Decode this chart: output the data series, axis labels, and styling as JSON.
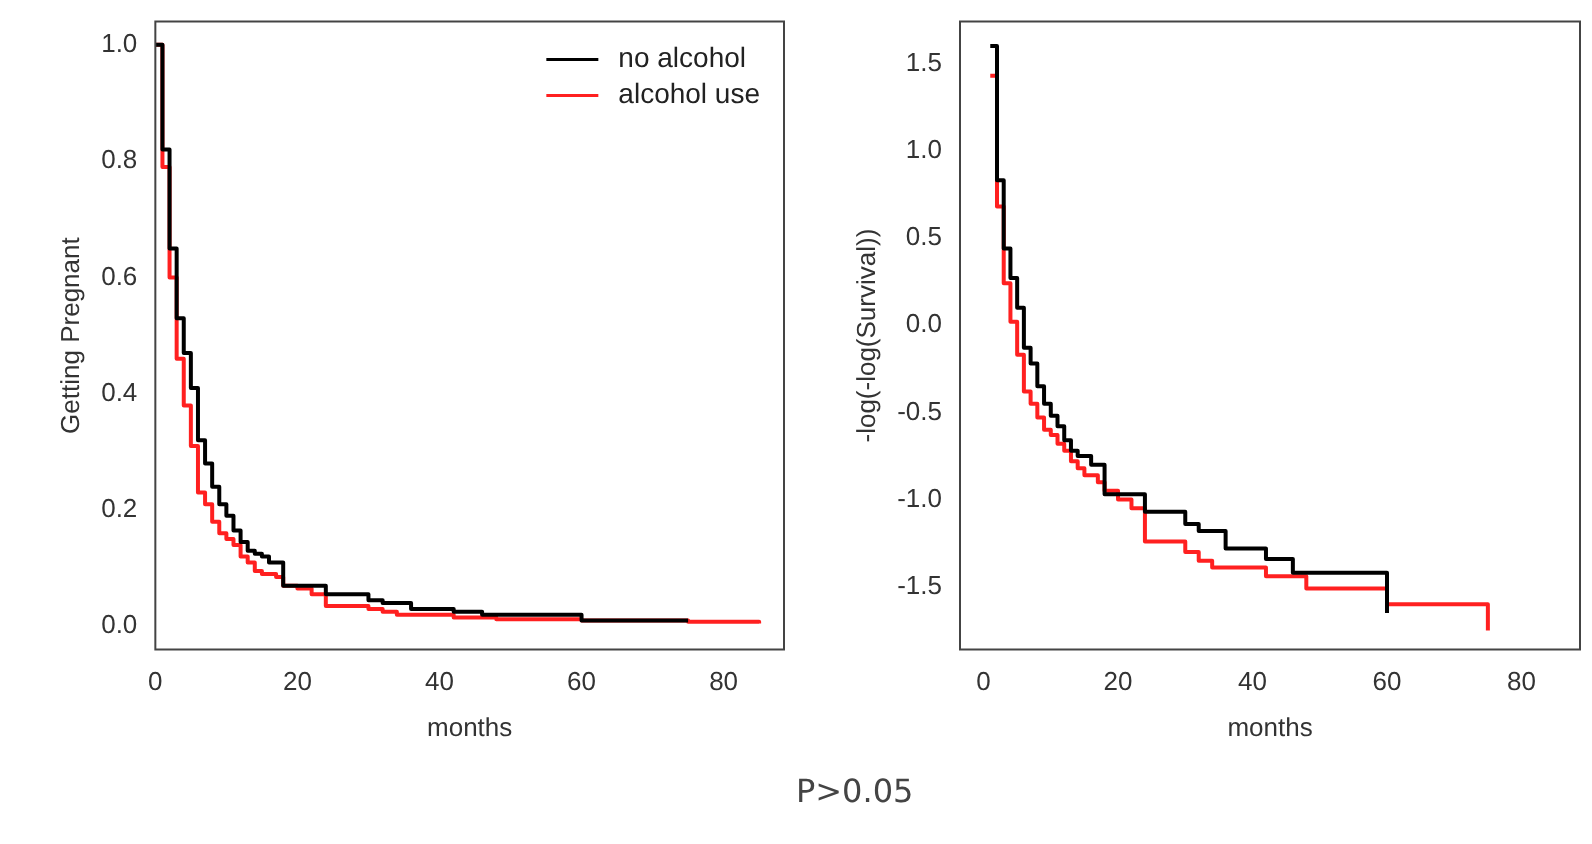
{
  "chart_data": [
    {
      "type": "step",
      "xlabel": "months",
      "ylabel": "Getting Pregnant",
      "xlim": [
        0,
        88.5
      ],
      "ylim": [
        -0.04,
        1.04
      ],
      "xticks": [
        0,
        20,
        40,
        60,
        80
      ],
      "yticks": [
        {
          "value": 0,
          "label": "0.0"
        },
        {
          "value": 0.2,
          "label": "0.2"
        },
        {
          "value": 0.4,
          "label": "0.4"
        },
        {
          "value": 0.6,
          "label": "0.6"
        },
        {
          "value": 0.8,
          "label": "0.8"
        },
        {
          "value": 1,
          "label": "1.0"
        }
      ],
      "legend": "top right",
      "series": [
        {
          "name": "no alcohol",
          "color": "#000000",
          "x": [
            0,
            1,
            2,
            3,
            4,
            5,
            6,
            7,
            8,
            9,
            10,
            11,
            12,
            13,
            14,
            15,
            16,
            18,
            24,
            30,
            32,
            36,
            42,
            46,
            60,
            75
          ],
          "values": [
            1,
            0.82,
            0.65,
            0.53,
            0.47,
            0.41,
            0.32,
            0.28,
            0.24,
            0.21,
            0.19,
            0.165,
            0.145,
            0.13,
            0.125,
            0.12,
            0.11,
            0.07,
            0.055,
            0.045,
            0.04,
            0.03,
            0.025,
            0.02,
            0.01,
            0.01
          ]
        },
        {
          "name": "alcohol use",
          "color": "#ff2020",
          "x": [
            0,
            1,
            2,
            3,
            4,
            5,
            6,
            7,
            8,
            9,
            10,
            11,
            12,
            13,
            14,
            15,
            17,
            18,
            20,
            22,
            24,
            30,
            32,
            34,
            42,
            48,
            60,
            75,
            85
          ],
          "values": [
            1,
            0.79,
            0.6,
            0.46,
            0.38,
            0.31,
            0.23,
            0.21,
            0.18,
            0.16,
            0.15,
            0.14,
            0.12,
            0.11,
            0.095,
            0.09,
            0.085,
            0.07,
            0.065,
            0.055,
            0.035,
            0.03,
            0.025,
            0.02,
            0.015,
            0.012,
            0.01,
            0.008,
            0.005
          ]
        }
      ]
    },
    {
      "type": "step",
      "xlabel": "months",
      "ylabel": "-log(-log(Survival))",
      "xlim": [
        -3.5,
        88.7
      ],
      "ylim": [
        -1.86,
        1.74
      ],
      "xticks": [
        0,
        20,
        40,
        60,
        80
      ],
      "yticks": [
        -1.5,
        {
          "value": -1,
          "label": "-1.0"
        },
        -0.5,
        {
          "value": 0,
          "label": "0.0"
        },
        0.5,
        {
          "value": 1,
          "label": "1.0"
        },
        1.5
      ],
      "annotations": [
        "P>0.05"
      ],
      "series": [
        {
          "color": "#000000",
          "x": [
            1,
            2,
            3,
            4,
            5,
            6,
            7,
            8,
            9,
            10,
            11,
            12,
            13,
            14,
            16,
            18,
            24,
            30,
            32,
            36,
            42,
            46,
            60
          ],
          "values": [
            1.6,
            0.83,
            0.44,
            0.27,
            0.1,
            -0.13,
            -0.22,
            -0.35,
            -0.45,
            -0.52,
            -0.58,
            -0.66,
            -0.72,
            -0.75,
            -0.8,
            -0.97,
            -1.07,
            -1.14,
            -1.18,
            -1.28,
            -1.34,
            -1.42,
            -1.65
          ]
        },
        {
          "color": "#ff2020",
          "x": [
            1,
            2,
            3,
            4,
            5,
            6,
            7,
            8,
            9,
            10,
            11,
            12,
            13,
            14,
            15,
            17,
            18,
            20,
            22,
            24,
            30,
            32,
            34,
            42,
            48,
            60,
            75
          ],
          "values": [
            1.43,
            0.68,
            0.24,
            0.02,
            -0.17,
            -0.38,
            -0.45,
            -0.53,
            -0.6,
            -0.63,
            -0.68,
            -0.72,
            -0.78,
            -0.82,
            -0.86,
            -0.9,
            -0.95,
            -1.0,
            -1.05,
            -1.24,
            -1.3,
            -1.35,
            -1.39,
            -1.44,
            -1.51,
            -1.6,
            -1.75
          ]
        }
      ]
    }
  ]
}
